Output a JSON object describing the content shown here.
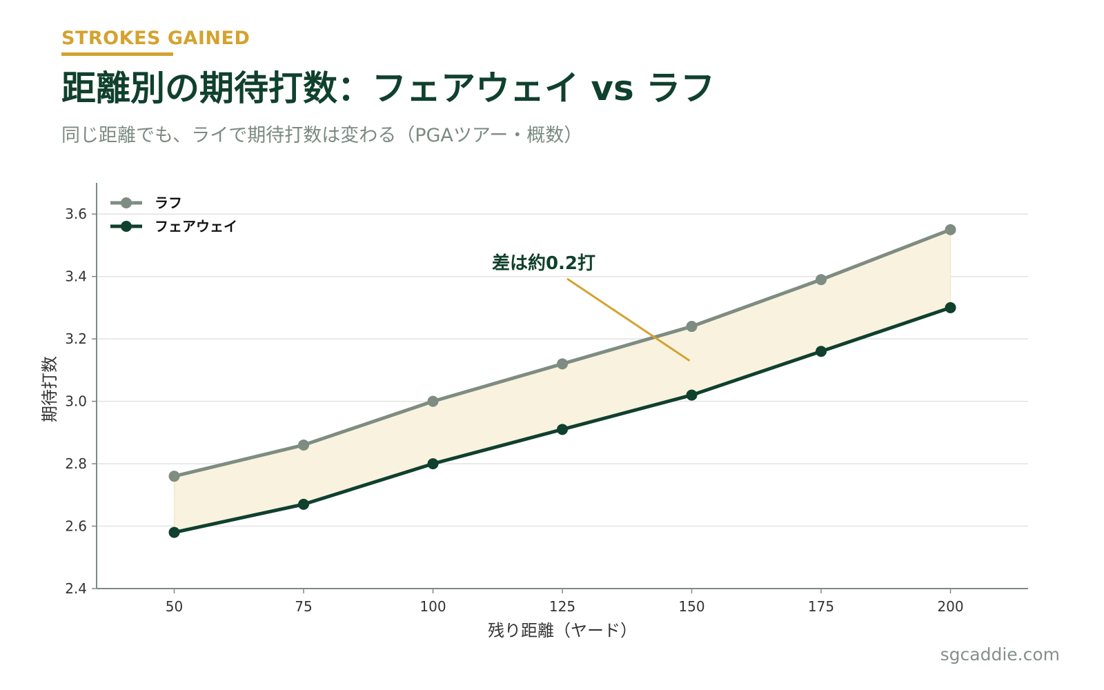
{
  "header": {
    "kicker": "STROKES GAINED",
    "title": "距離別の期待打数：フェアウェイ vs ラフ",
    "subtitle": "同じ距離でも、ライで期待打数は変わる（PGAツアー・概数）"
  },
  "credit": "sgcaddie.com",
  "colors": {
    "accent": "#d4a22f",
    "fairway": "#10402e",
    "rough": "#7e8c82",
    "band_fill": "#f8f2df",
    "grid": "#e2e2e2",
    "axis": "#7b8a82"
  },
  "chart_data": {
    "type": "line",
    "x": [
      50,
      75,
      100,
      125,
      150,
      175,
      200
    ],
    "series": [
      {
        "name": "ラフ",
        "values": [
          2.76,
          2.86,
          3.0,
          3.12,
          3.24,
          3.39,
          3.55
        ]
      },
      {
        "name": "フェアウェイ",
        "values": [
          2.58,
          2.67,
          2.8,
          2.91,
          3.02,
          3.16,
          3.3
        ]
      }
    ],
    "xlabel": "残り距離（ヤード）",
    "ylabel": "期待打数",
    "xticks": [
      "50",
      "75",
      "100",
      "125",
      "150",
      "175",
      "200"
    ],
    "yticks": [
      "2.4",
      "2.6",
      "2.8",
      "3.0",
      "3.2",
      "3.4",
      "3.6"
    ],
    "xlim": [
      35,
      215
    ],
    "ylim": [
      2.4,
      3.7
    ],
    "grid": "horizontal",
    "legend": "top-left",
    "fill_between": true,
    "annotation": {
      "text": "差は約0.2打",
      "x": 150,
      "y": 3.13
    }
  }
}
